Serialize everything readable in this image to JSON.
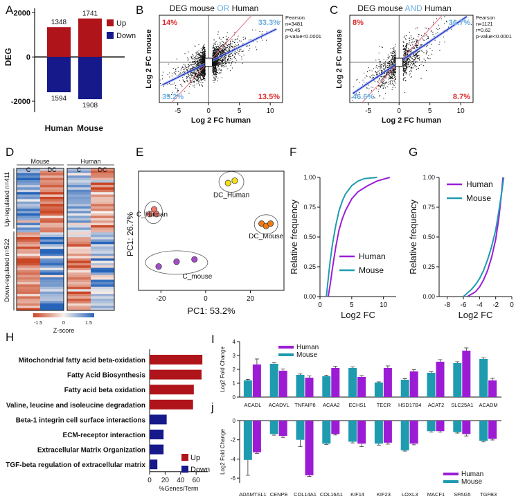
{
  "panels": {
    "A": "A",
    "B": "B",
    "C": "C",
    "D": "D",
    "E": "E",
    "F": "F",
    "G": "G",
    "H": "H",
    "I": "I",
    "J": "j"
  },
  "colors": {
    "up": "#b0141b",
    "down": "#15198a",
    "purple": "#9c1cd6",
    "teal": "#1f9bb0",
    "blue_line": "#2433c9",
    "pink_line": "#e86f84",
    "salmon": "#f07a6a",
    "yellow": "#f5df14",
    "orange": "#ef7b14",
    "violet": "#a44cc8",
    "red_text": "#e02a2a",
    "lightblue_text": "#6aaee0"
  },
  "chart_data": [
    {
      "id": "A",
      "type": "bar",
      "ylabel": "DEG",
      "categories": [
        "Human",
        "Mouse"
      ],
      "series": [
        {
          "name": "Up",
          "values": [
            1348,
            1741
          ]
        },
        {
          "name": "Down",
          "values": [
            -1594,
            -1908
          ]
        }
      ],
      "labels": {
        "up": [
          "1348",
          "1741"
        ],
        "down": [
          "1594",
          "1908"
        ]
      },
      "ylim": [
        -2500,
        2200
      ],
      "yticks": [
        -2000,
        0,
        2000
      ],
      "ytick_labels": [
        "-2000",
        "0",
        "2000"
      ],
      "legend": [
        "Up",
        "Down"
      ]
    },
    {
      "id": "B",
      "type": "scatter",
      "title_parts": [
        "DEG mouse ",
        "OR",
        " Human"
      ],
      "xlabel": "Log 2 FC human",
      "ylabel": "Log 2 FC mouse",
      "xlim": [
        -8,
        12
      ],
      "ylim": [
        -6,
        7
      ],
      "xticks": [
        -5,
        0,
        5,
        10
      ],
      "xtick_labels": [
        "-5",
        "0",
        "5",
        "10"
      ],
      "yticks": [],
      "ytick_labels": [],
      "quadrants": {
        "top_left": "14%",
        "top_right": "33.3%",
        "bottom_left": "39.2%",
        "bottom_right": "13.5%"
      },
      "stats": [
        "Pearson",
        "n=3481",
        "r=0.45",
        "p-value<0.0001"
      ],
      "regression_slope": 0.45,
      "n_points": 3481
    },
    {
      "id": "C",
      "type": "scatter",
      "title_parts": [
        "DEG mouse ",
        "AND",
        " Human"
      ],
      "xlabel": "Log 2 FC human",
      "ylabel": "Log 2 FC mouse",
      "xlim": [
        -8,
        12
      ],
      "ylim": [
        -6,
        7
      ],
      "xticks": [
        -5,
        0,
        5,
        10
      ],
      "xtick_labels": [
        "-5",
        "0",
        "5",
        "10"
      ],
      "yticks": [],
      "ytick_labels": [],
      "quadrants": {
        "top_left": "8%",
        "top_right": "36.7%",
        "bottom_left": "46.6%",
        "bottom_right": "8.7%"
      },
      "stats": [
        "Pearson",
        "n=1121",
        "r=0.62",
        "p-value<0.0001"
      ],
      "regression_slope": 0.62,
      "n_points": 1121
    },
    {
      "id": "D",
      "type": "heatmap",
      "groups": [
        "Mouse",
        "Human"
      ],
      "columns": [
        "C",
        "DC",
        "C",
        "DC"
      ],
      "row_groups": [
        "Up-regulated n=411",
        "Down-regulated n=522"
      ],
      "up_n": 411,
      "down_n": 522,
      "scale_label": "Z-score",
      "scale_ticks": [
        "-1.5",
        "0",
        "1.5"
      ],
      "scale_range": [
        -1.5,
        1.5
      ]
    },
    {
      "id": "E",
      "type": "scatter",
      "xlabel": "PC1: 53.2%",
      "ylabel": "PC1: 26.7%",
      "xlim": [
        -30,
        35
      ],
      "ylim": [
        -22,
        28
      ],
      "xticks": [
        -20,
        0,
        20
      ],
      "xtick_labels": [
        "-20",
        "0",
        "20"
      ],
      "groups": [
        {
          "name": "C_Human",
          "points": [
            [
              -25,
              10
            ],
            [
              -23,
              12
            ],
            [
              -22,
              10
            ]
          ]
        },
        {
          "name": "DC_Human",
          "points": [
            [
              10,
              23
            ],
            [
              13,
              24
            ]
          ]
        },
        {
          "name": "DC_Mouse",
          "points": [
            [
              25,
              6
            ],
            [
              27,
              5
            ],
            [
              29,
              6
            ]
          ]
        },
        {
          "name": "C_mouse",
          "points": [
            [
              -21,
              -12
            ],
            [
              -13,
              -10
            ],
            [
              -5,
              -9
            ]
          ]
        }
      ]
    },
    {
      "id": "F",
      "type": "line",
      "xlabel": "Log2 FC",
      "ylabel": "Relative frequency",
      "xlim": [
        0,
        12
      ],
      "ylim": [
        0,
        1
      ],
      "xticks": [
        0,
        5,
        10
      ],
      "xtick_labels": [
        "0",
        "5",
        "10"
      ],
      "yticks": [
        0,
        0.25,
        0.5,
        0.75,
        1.0
      ],
      "ytick_labels": [
        "0.00",
        "0.25",
        "0.50",
        "0.75",
        "1.00"
      ],
      "series": [
        {
          "name": "Human",
          "x": [
            1.3,
            1.6,
            2.0,
            2.5,
            3.0,
            3.5,
            4.0,
            5.0,
            6.0,
            7.5,
            9.0,
            11.0
          ],
          "y": [
            0,
            0.1,
            0.25,
            0.42,
            0.56,
            0.65,
            0.72,
            0.82,
            0.88,
            0.93,
            0.97,
            1.0
          ]
        },
        {
          "name": "Mouse",
          "x": [
            1.0,
            1.3,
            1.6,
            2.0,
            2.5,
            3.0,
            3.5,
            4.0,
            5.0,
            6.0,
            7.0,
            9.0
          ],
          "y": [
            0,
            0.15,
            0.3,
            0.45,
            0.6,
            0.72,
            0.8,
            0.86,
            0.93,
            0.97,
            0.99,
            1.0
          ]
        }
      ],
      "legend": [
        "Human",
        "Mouse"
      ]
    },
    {
      "id": "G",
      "type": "line",
      "xlabel": "Log2 FC",
      "ylabel": "Relative frequency",
      "xlim": [
        -9,
        0
      ],
      "ylim": [
        0,
        1
      ],
      "xticks": [
        -8,
        -6,
        -4,
        -2,
        0
      ],
      "xtick_labels": [
        "-8",
        "-6",
        "-4",
        "-2",
        "0"
      ],
      "yticks": [
        0,
        0.25,
        0.5,
        0.75,
        1.0
      ],
      "ytick_labels": [
        "0.00",
        "0.25",
        "0.50",
        "0.75",
        "1.00"
      ],
      "series": [
        {
          "name": "Human",
          "x": [
            -5.5,
            -4.5,
            -4.0,
            -3.5,
            -3.0,
            -2.5,
            -2.0,
            -1.6,
            -1.3,
            -1.1
          ],
          "y": [
            0,
            0.04,
            0.08,
            0.14,
            0.22,
            0.33,
            0.48,
            0.66,
            0.85,
            1.0
          ]
        },
        {
          "name": "Mouse",
          "x": [
            -6.0,
            -5.0,
            -4.5,
            -4.0,
            -3.5,
            -3.0,
            -2.5,
            -2.0,
            -1.6,
            -1.2,
            -1.0
          ],
          "y": [
            0,
            0.06,
            0.1,
            0.15,
            0.22,
            0.31,
            0.42,
            0.56,
            0.72,
            0.9,
            1.0
          ]
        }
      ],
      "legend": [
        "Human",
        "Mouse"
      ]
    },
    {
      "id": "H",
      "type": "bar",
      "orientation": "horizontal",
      "xlabel": "%Genes/Term",
      "categories": [
        "Mitochondrial fatty acid beta-oxidation",
        "Fatty Acid Biosynthesis",
        "Fatty acid beta oxidation",
        "Valine, leucine and isoleucine degradation",
        "Beta-1 integrin cell surface interactions",
        "ECM-receptor interaction",
        "Extracellular Matrix Organization",
        "TGF-beta regulation of extracellular matrix"
      ],
      "values": [
        68,
        67,
        57,
        56,
        22,
        18,
        18,
        10
      ],
      "direction": [
        "Up",
        "Up",
        "Up",
        "Up",
        "Down",
        "Down",
        "Down",
        "Down"
      ],
      "xlim": [
        0,
        75
      ],
      "xticks": [
        0,
        20,
        40,
        60
      ],
      "xtick_labels": [
        "0",
        "20",
        "40",
        "60"
      ],
      "legend": [
        "Up",
        "Down"
      ]
    },
    {
      "id": "I",
      "type": "bar",
      "ylabel": "Log2 Fold Change",
      "categories": [
        "ACADL",
        "ACADVL",
        "TNFAIP8",
        "ACAA2",
        "ECHS1",
        "TECR",
        "HSD17B4",
        "ACAT2",
        "SLC25A1",
        "ACADM"
      ],
      "series": [
        {
          "name": "Mouse",
          "values": [
            1.2,
            2.4,
            1.6,
            1.5,
            2.1,
            1.05,
            1.25,
            1.75,
            2.45,
            2.75
          ]
        },
        {
          "name": "Human",
          "values": [
            2.35,
            1.9,
            1.4,
            2.1,
            1.45,
            2.1,
            1.85,
            2.55,
            3.35,
            1.2
          ]
        }
      ],
      "errors": {
        "Mouse": [
          0.08,
          0.07,
          0.06,
          0.08,
          0.08,
          0.05,
          0.08,
          0.08,
          0.1,
          0.08
        ],
        "Human": [
          0.4,
          0.12,
          0.12,
          0.12,
          0.1,
          0.15,
          0.12,
          0.15,
          0.2,
          0.15
        ]
      },
      "ylim": [
        0,
        4
      ],
      "yticks": [
        0,
        1,
        2,
        3,
        4
      ],
      "ytick_labels": [
        "0",
        "1",
        "2",
        "3",
        "4"
      ],
      "legend": [
        "Human",
        "Mouse"
      ]
    },
    {
      "id": "J",
      "type": "bar",
      "ylabel": "Log2 Fold Change",
      "categories": [
        "ADAMTSL1",
        "CENPE",
        "COL14A1",
        "COL16A1",
        "KIF14",
        "KIF23",
        "LOXL3",
        "MACF1",
        "SPAG5",
        "TGFB3"
      ],
      "series": [
        {
          "name": "Mouse",
          "values": [
            -4.1,
            -1.4,
            -2.0,
            -2.4,
            -2.2,
            -2.4,
            -3.1,
            -1.1,
            -1.2,
            -2.1
          ]
        },
        {
          "name": "Human",
          "values": [
            -3.3,
            -1.6,
            -5.7,
            -1.4,
            -2.4,
            -2.3,
            -2.4,
            -1.1,
            -1.4,
            -1.9
          ]
        }
      ],
      "errors": {
        "Mouse": [
          1.6,
          0.12,
          0.7,
          0.08,
          0.12,
          0.15,
          0.08,
          0.08,
          0.1,
          0.12
        ],
        "Human": [
          0.12,
          0.15,
          0.12,
          0.1,
          0.3,
          0.15,
          0.12,
          0.1,
          0.2,
          0.12
        ]
      },
      "ylim": [
        -6.5,
        0
      ],
      "yticks": [
        -6,
        -4,
        -2,
        0
      ],
      "ytick_labels": [
        "-6",
        "-4",
        "-2",
        "0"
      ],
      "legend": [
        "Human",
        "Mouse"
      ]
    }
  ]
}
